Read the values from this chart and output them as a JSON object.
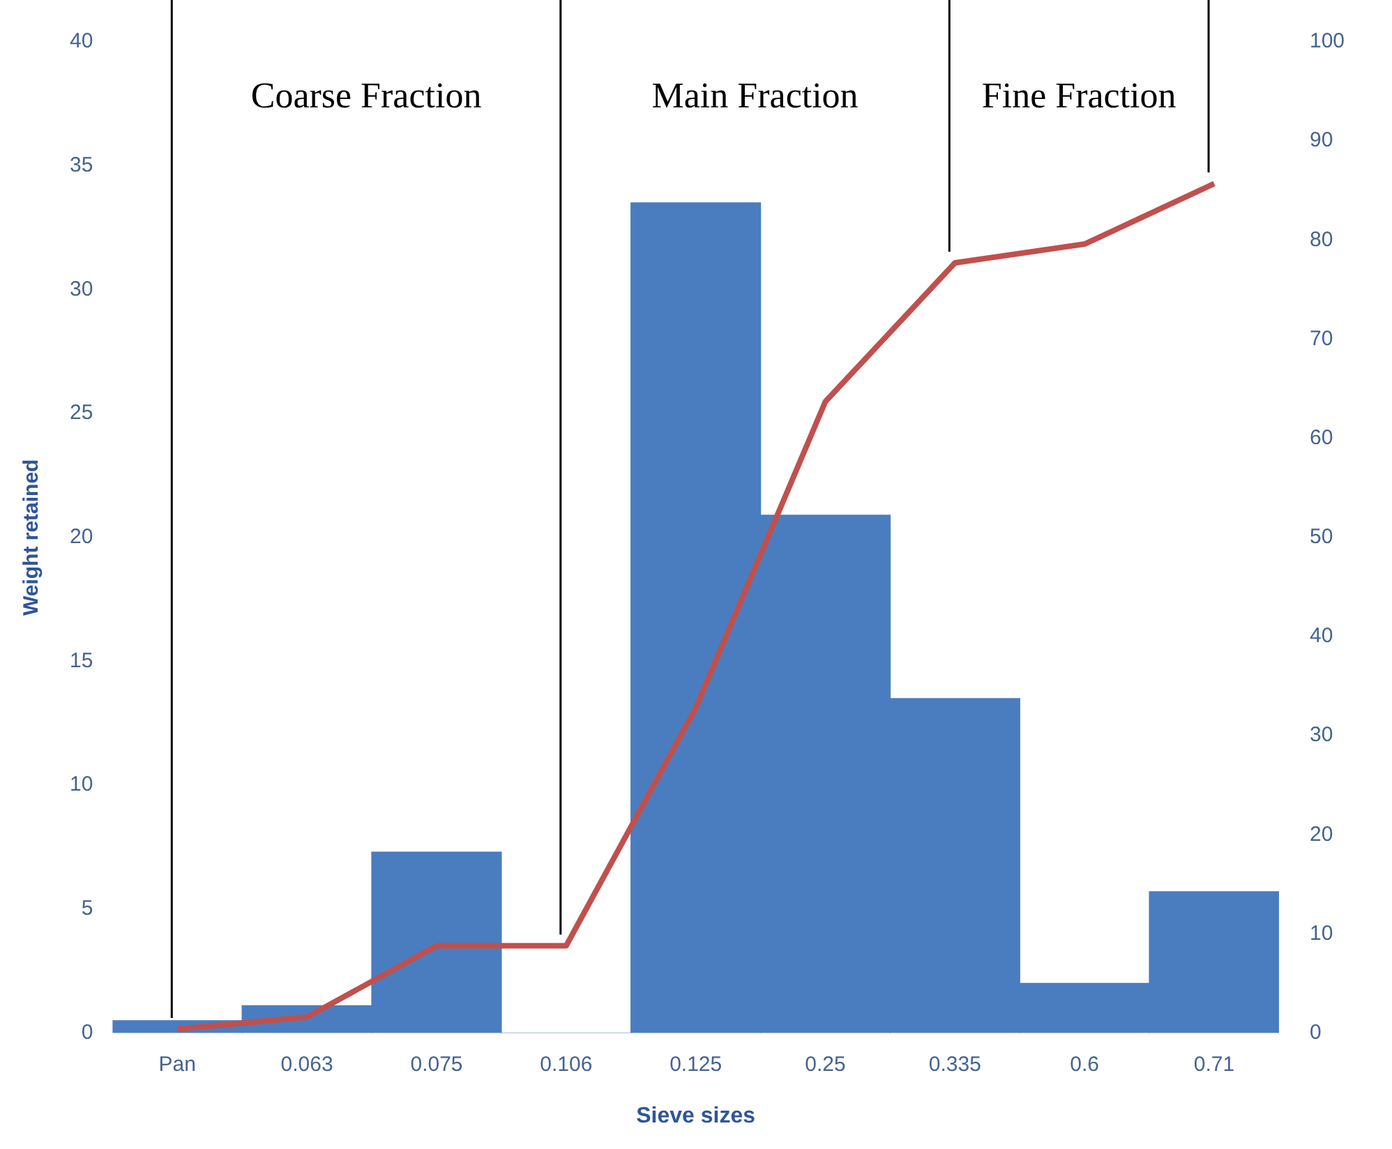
{
  "chart_data": {
    "type": "bar",
    "xlabel": "Sieve sizes",
    "ylabel": "Weight retained",
    "categories": [
      "Pan",
      "0.063",
      "0.075",
      "0.106",
      "0.125",
      "0.25",
      "0.335",
      "0.6",
      "0.71"
    ],
    "series": [
      {
        "color": "#4a7dbf",
        "values": [
          0.5,
          1.1,
          7.3,
          0,
          33.5,
          20.9,
          13.5,
          2.0,
          5.7
        ]
      },
      {
        "type": "line",
        "axis": "y2",
        "color": "#c0504d",
        "values": [
          0.4,
          1.6,
          8.8,
          8.8,
          32.8,
          63.7,
          77.7,
          79.6,
          85.7
        ]
      }
    ],
    "ylim": [
      0,
      40
    ],
    "yticks": [
      0,
      5,
      10,
      15,
      20,
      25,
      30,
      35,
      40
    ],
    "y2lim": [
      0,
      100
    ],
    "y2ticks": [
      0,
      10,
      20,
      30,
      40,
      50,
      60,
      70,
      80,
      90,
      100
    ],
    "ref_lines": [
      {
        "axis": "x",
        "value": "Pan",
        "color": "#000000"
      },
      {
        "axis": "x",
        "value": "0.106",
        "color": "#000000"
      },
      {
        "axis": "x",
        "value": "0.335",
        "color": "#000000"
      },
      {
        "axis": "x",
        "value": "0.71",
        "color": "#000000"
      }
    ],
    "annotations": [
      "Coarse Fraction",
      "Main Fraction",
      "Fine Fraction"
    ],
    "grid": false,
    "legend": false,
    "marker": "none",
    "line_style": "solid"
  }
}
